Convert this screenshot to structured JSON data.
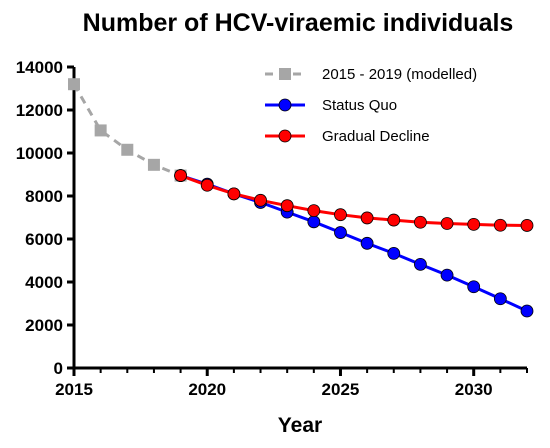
{
  "chart_data": {
    "type": "line",
    "title": "Number of HCV-viraemic individuals",
    "xlabel": "Year",
    "ylabel": "",
    "xlim": [
      2015,
      2032
    ],
    "ylim": [
      0,
      14000
    ],
    "x_ticks": [
      2015,
      2020,
      2025,
      2030
    ],
    "y_ticks": [
      0,
      2000,
      4000,
      6000,
      8000,
      10000,
      12000,
      14000
    ],
    "grid": false,
    "legend_position": "top-right",
    "series": [
      {
        "name": "2015 - 2019 (modelled)",
        "color": "#a6a6a6",
        "marker": "square",
        "line_style": "dashed",
        "points": [
          [
            2015,
            13200
          ],
          [
            2016,
            11050
          ],
          [
            2017,
            10150
          ],
          [
            2018,
            9450
          ],
          [
            2019,
            8950
          ]
        ]
      },
      {
        "name": "Status Quo",
        "color": "#0000ff",
        "marker": "circle",
        "line_style": "solid",
        "points": [
          [
            2019,
            8950
          ],
          [
            2020,
            8550
          ],
          [
            2021,
            8100
          ],
          [
            2022,
            7700
          ],
          [
            2023,
            7250
          ],
          [
            2024,
            6800
          ],
          [
            2025,
            6300
          ],
          [
            2026,
            5800
          ],
          [
            2027,
            5330
          ],
          [
            2028,
            4820
          ],
          [
            2029,
            4320
          ],
          [
            2030,
            3780
          ],
          [
            2031,
            3220
          ],
          [
            2032,
            2650
          ]
        ]
      },
      {
        "name": "Gradual Decline",
        "color": "#ff0000",
        "marker": "circle",
        "line_style": "solid",
        "points": [
          [
            2019,
            8950
          ],
          [
            2020,
            8500
          ],
          [
            2021,
            8100
          ],
          [
            2022,
            7800
          ],
          [
            2023,
            7550
          ],
          [
            2024,
            7320
          ],
          [
            2025,
            7130
          ],
          [
            2026,
            6980
          ],
          [
            2027,
            6880
          ],
          [
            2028,
            6780
          ],
          [
            2029,
            6720
          ],
          [
            2030,
            6680
          ],
          [
            2031,
            6640
          ],
          [
            2032,
            6630
          ]
        ]
      }
    ]
  }
}
